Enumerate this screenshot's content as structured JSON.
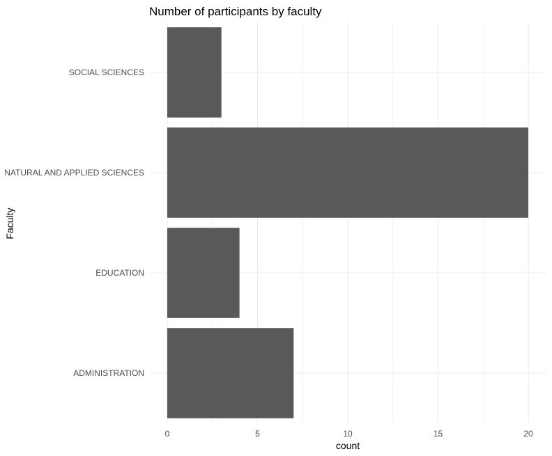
{
  "chart_data": {
    "type": "bar",
    "orientation": "horizontal",
    "title": "Number of participants by faculty",
    "xlabel": "count",
    "ylabel": "Faculty",
    "categories": [
      "SOCIAL SCIENCES",
      "NATURAL AND APPLIED SCIENCES",
      "EDUCATION",
      "ADMINISTRATION"
    ],
    "values": [
      3,
      20,
      4,
      7
    ],
    "xlim": [
      0,
      21
    ],
    "x_ticks": [
      "0",
      "5",
      "10",
      "15",
      "20"
    ],
    "grid": true,
    "bar_color": "#595959",
    "grid_color": "#ebebeb"
  }
}
